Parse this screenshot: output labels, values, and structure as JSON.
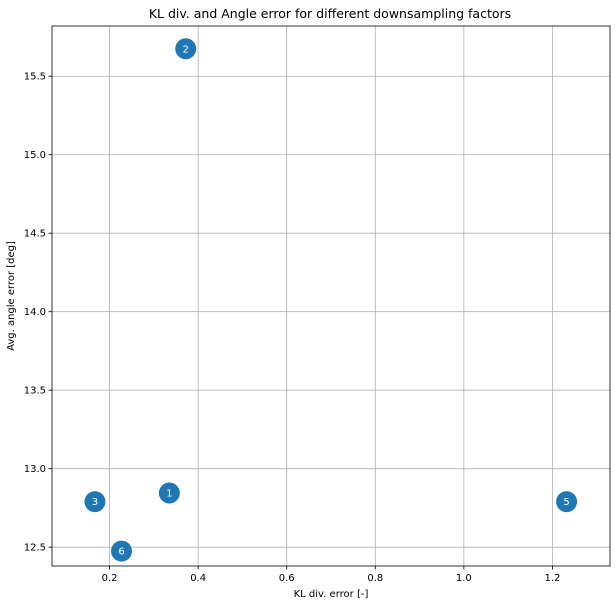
{
  "chart_data": {
    "type": "scatter",
    "title": "KL div. and Angle error for different downsampling factors",
    "xlabel": "KL div. error [-]",
    "ylabel": "Avg. angle error [deg]",
    "xlim": [
      0.07,
      1.33
    ],
    "ylim": [
      12.38,
      15.82
    ],
    "xticks": [
      0.2,
      0.4,
      0.6,
      0.8,
      1.0,
      1.2
    ],
    "xtick_labels": [
      "0.2",
      "0.4",
      "0.6",
      "0.8",
      "1.0",
      "1.2"
    ],
    "yticks": [
      12.5,
      13.0,
      13.5,
      14.0,
      14.5,
      15.0,
      15.5
    ],
    "ytick_labels": [
      "12.5",
      "13.0",
      "13.5",
      "14.0",
      "14.5",
      "15.0",
      "15.5"
    ],
    "grid": true,
    "marker_color": "#1f77b4",
    "points": [
      {
        "label": "1",
        "x": 0.335,
        "y": 12.845
      },
      {
        "label": "2",
        "x": 0.372,
        "y": 15.675
      },
      {
        "label": "3",
        "x": 0.167,
        "y": 12.79
      },
      {
        "label": "5",
        "x": 1.232,
        "y": 12.79
      },
      {
        "label": "6",
        "x": 0.227,
        "y": 12.475
      }
    ]
  }
}
